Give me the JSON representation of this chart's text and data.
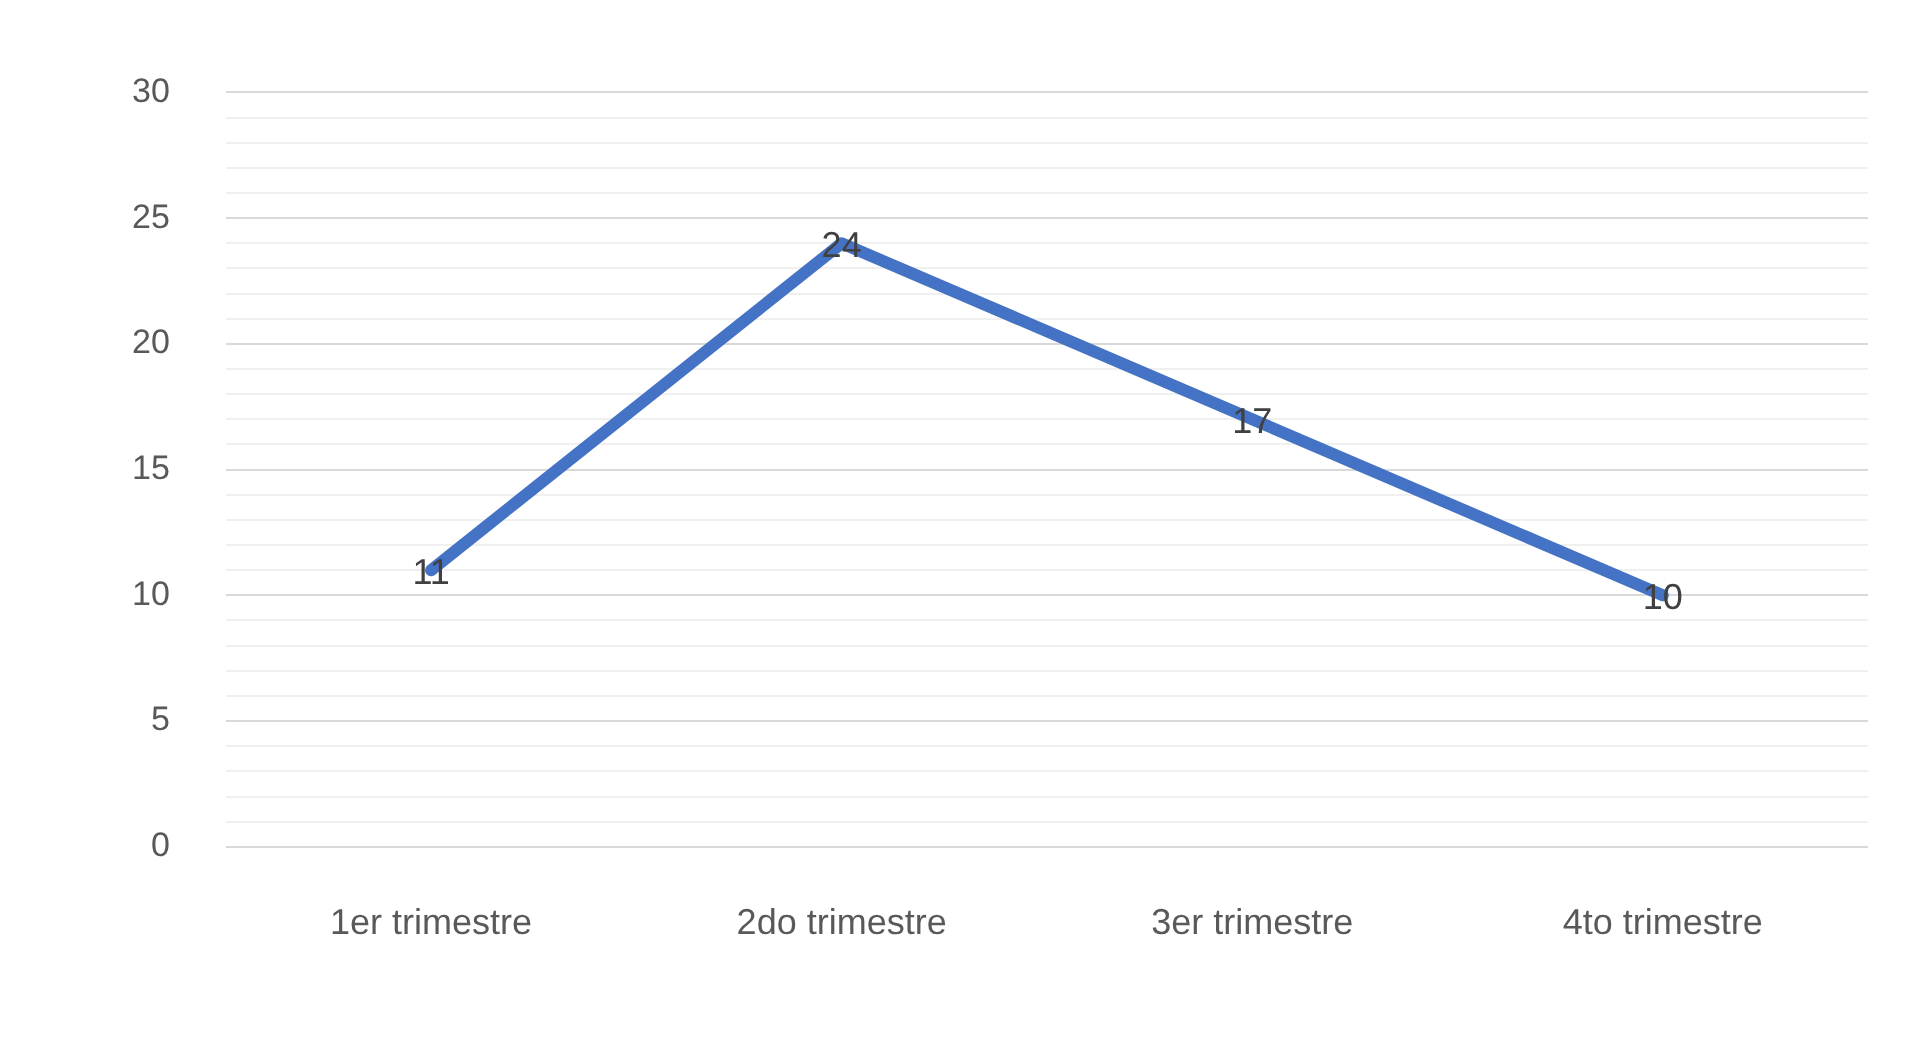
{
  "chart_data": {
    "type": "line",
    "categories": [
      "1er trimestre",
      "2do trimestre",
      "3er trimestre",
      "4to trimestre"
    ],
    "series": [
      {
        "color": "#4472c4",
        "values": [
          11,
          24,
          17,
          10
        ]
      }
    ],
    "ylim": [
      0,
      30
    ],
    "yticks": [
      0,
      {
        "value": 1,
        "label": null
      },
      {
        "value": 2,
        "label": null
      },
      {
        "value": 3,
        "label": null
      },
      {
        "value": 4,
        "label": null
      },
      5,
      {
        "value": 6,
        "label": null
      },
      {
        "value": 7,
        "label": null
      },
      {
        "value": 8,
        "label": null
      },
      {
        "value": 9,
        "label": null
      },
      10,
      {
        "value": 11,
        "label": null
      },
      {
        "value": 12,
        "label": null
      },
      {
        "value": 13,
        "label": null
      },
      {
        "value": 14,
        "label": null
      },
      15,
      {
        "value": 16,
        "label": null
      },
      {
        "value": 17,
        "label": null
      },
      {
        "value": 18,
        "label": null
      },
      {
        "value": 19,
        "label": null
      },
      20,
      {
        "value": 21,
        "label": null
      },
      {
        "value": 22,
        "label": null
      },
      {
        "value": 23,
        "label": null
      },
      {
        "value": 24,
        "label": null
      },
      25,
      {
        "value": 26,
        "label": null
      },
      {
        "value": 27,
        "label": null
      },
      {
        "value": 28,
        "label": null
      },
      {
        "value": 29,
        "label": null
      },
      30
    ],
    "grid": "y",
    "legend": false,
    "marker": "none",
    "line_style": "solid",
    "data_labels": true
  }
}
